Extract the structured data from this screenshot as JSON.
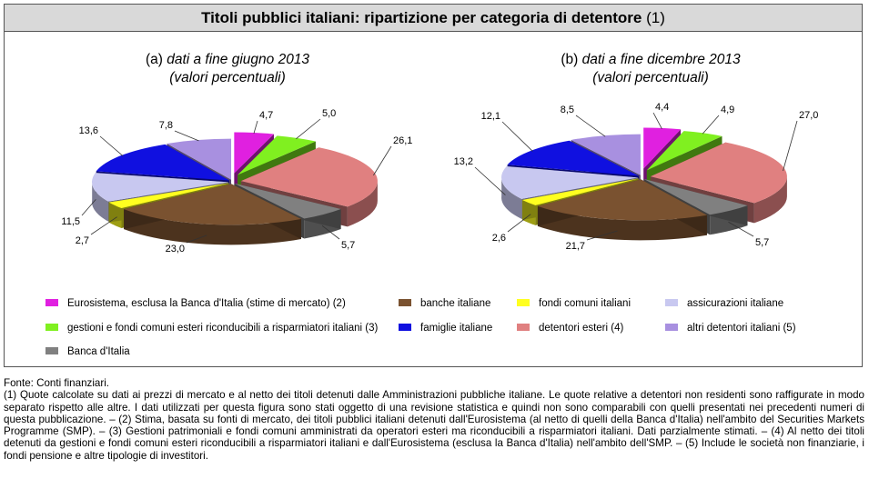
{
  "title": {
    "main": "Titoli pubblici italiani: ripartizione per categoria di detentore",
    "note": "(1)"
  },
  "charts": [
    {
      "prefix": "(a)",
      "subtitle": "dati a fine giugno 2013",
      "subtitle2": "(valori percentuali)"
    },
    {
      "prefix": "(b)",
      "subtitle": "dati a fine dicembre 2013",
      "subtitle2": "(valori percentuali)"
    }
  ],
  "chart_data": [
    {
      "type": "pie",
      "title": "(a) dati a fine giugno 2013 (valori percentuali)",
      "categories": [
        "Eurosistema",
        "gestioni e fondi comuni esteri",
        "detentori esteri",
        "Banca d'Italia",
        "banche italiane",
        "fondi comuni italiani",
        "assicurazioni italiane",
        "famiglie italiane",
        "altri detentori italiani"
      ],
      "values": [
        4.7,
        5.0,
        26.1,
        5.7,
        23.0,
        2.7,
        11.5,
        13.6,
        7.8
      ],
      "labels": [
        "4,7",
        "5,0",
        "26,1",
        "5,7",
        "23,0",
        "2,7",
        "11,5",
        "13,6",
        "7,8"
      ]
    },
    {
      "type": "pie",
      "title": "(b) dati a fine dicembre 2013 (valori percentuali)",
      "categories": [
        "Eurosistema",
        "gestioni e fondi comuni esteri",
        "detentori esteri",
        "Banca d'Italia",
        "banche italiane",
        "fondi comuni italiani",
        "assicurazioni italiane",
        "famiglie italiane",
        "altri detentori italiani"
      ],
      "values": [
        4.4,
        4.9,
        27.0,
        5.7,
        21.7,
        2.6,
        13.2,
        12.1,
        8.5
      ],
      "labels": [
        "4,4",
        "4,9",
        "27,0",
        "5,7",
        "21,7",
        "2,6",
        "13,2",
        "12,1",
        "8,5"
      ]
    }
  ],
  "colors": {
    "Eurosistema": "#e020e0",
    "gestioni": "#80f020",
    "esteri": "#e08080",
    "bancaitalia": "#808080",
    "banche": "#7a5230",
    "fondi": "#ffff20",
    "assicurazioni": "#c8c8f0",
    "famiglie": "#1010e0",
    "altri": "#a890e0"
  },
  "legend": [
    {
      "label": "Eurosistema, esclusa la Banca d'Italia (stime di mercato) (2)",
      "color": "#e020e0"
    },
    {
      "label": "banche italiane",
      "color": "#7a5230"
    },
    {
      "label": "fondi comuni italiani",
      "color": "#ffff20"
    },
    {
      "label": "assicurazioni italiane",
      "color": "#c8c8f0"
    },
    {
      "label": "gestioni e fondi comuni esteri riconducibili a risparmiatori italiani (3)",
      "color": "#80f020"
    },
    {
      "label": "famiglie italiane",
      "color": "#1010e0"
    },
    {
      "label": "detentori esteri (4)",
      "color": "#e08080"
    },
    {
      "label": "altri detentori italiani (5)",
      "color": "#a890e0"
    },
    {
      "label": "Banca d'Italia",
      "color": "#808080"
    }
  ],
  "notes": {
    "source": "Fonte: Conti finanziari.",
    "body": "(1) Quote calcolate su dati ai prezzi di mercato e al netto dei titoli detenuti dalle Amministrazioni pubbliche italiane. Le quote relative a detentori non residenti sono raffigurate in modo separato rispetto alle altre. I dati utilizzati per questa figura sono stati oggetto di una revisione statistica e quindi non sono comparabili con quelli presentati nei precedenti numeri di questa pubblicazione. – (2) Stima, basata su fonti di mercato, dei titoli pubblici italiani detenuti dall'Eurosistema (al netto di quelli della Banca d'Italia) nell'ambito del Securities Markets Programme (SMP). – (3) Gestioni patrimoniali e fondi comuni amministrati da operatori esteri ma riconducibili a risparmiatori italiani. Dati parzialmente stimati. – (4) Al netto dei titoli detenuti da gestioni e fondi comuni esteri riconducibili a risparmiatori italiani e dall'Eurosistema (esclusa la Banca d'Italia) nell'ambito dell'SMP. – (5) Include le società non finanziarie, i fondi pensione e altre tipologie di investitori."
  }
}
